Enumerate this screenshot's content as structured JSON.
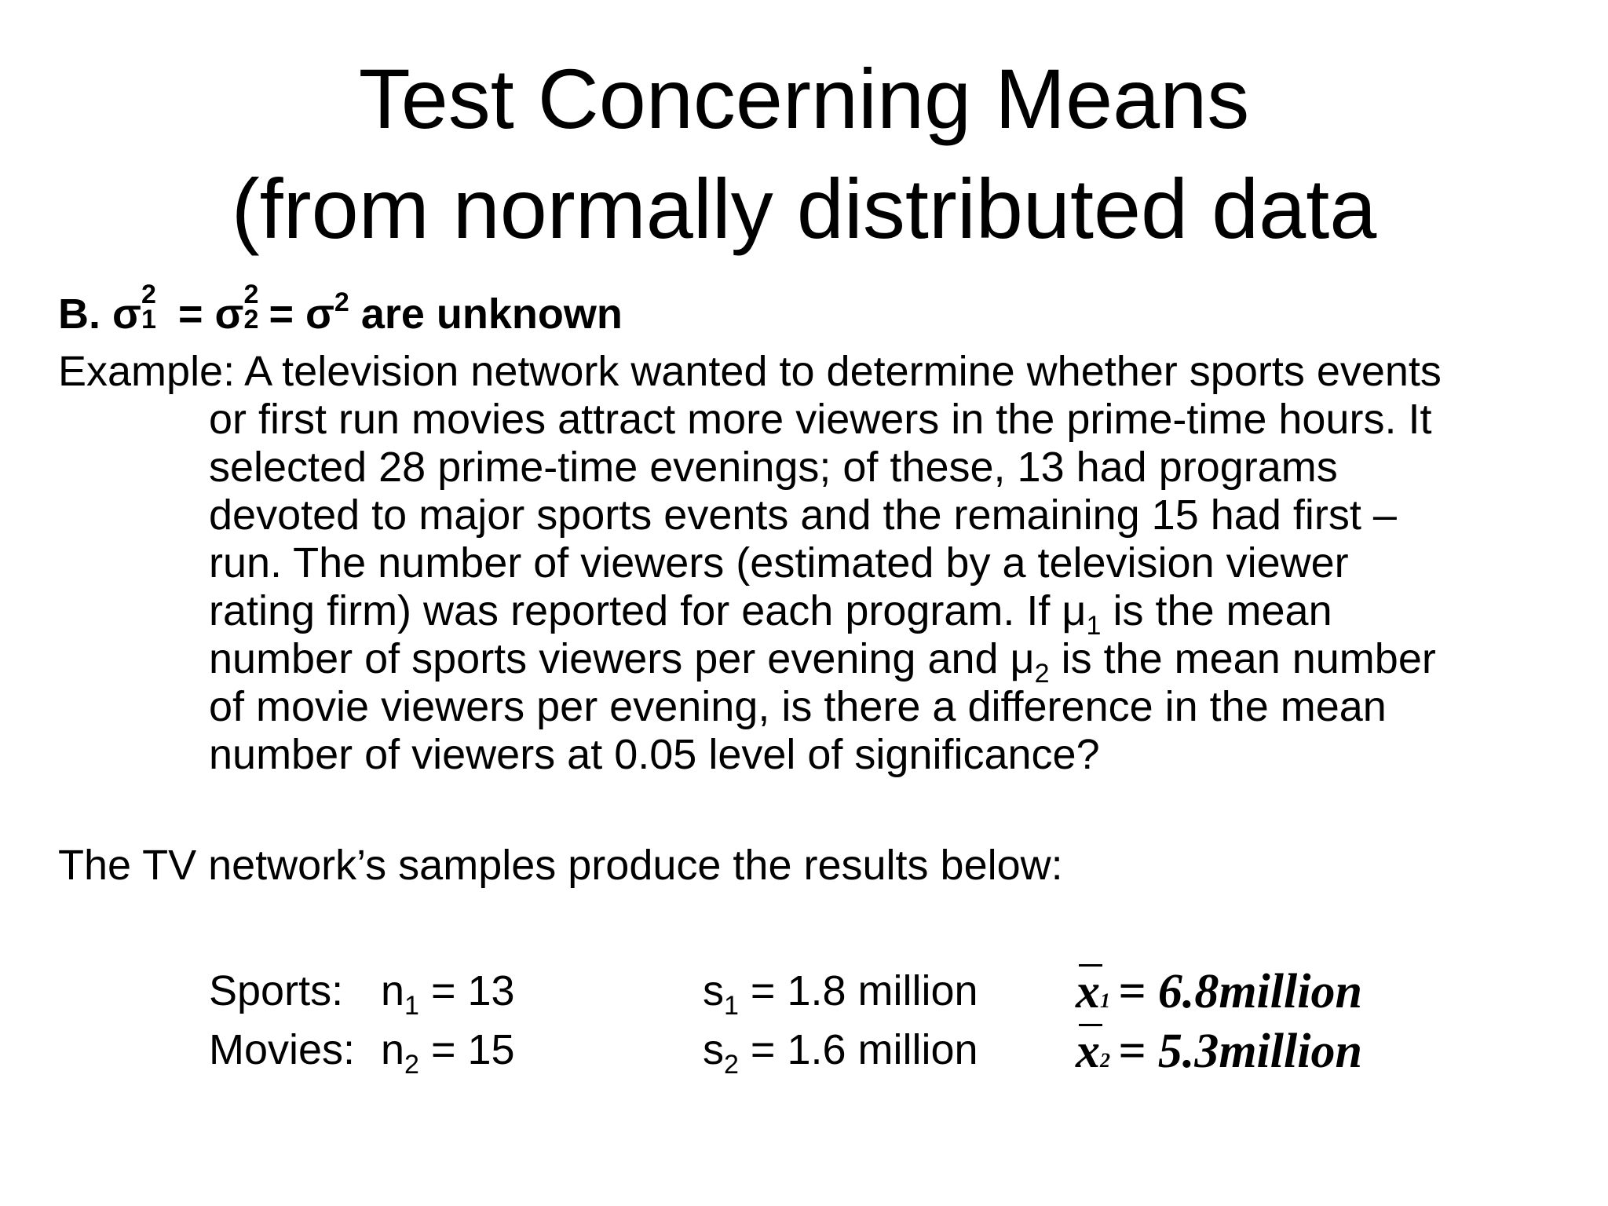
{
  "title": {
    "line1": "Test Concerning Means",
    "line2": "(from normally distributed data"
  },
  "heading": {
    "prefix": "B. σ",
    "sigma1_sup": "2",
    "sigma1_sub": "1",
    "eq1": " = σ",
    "sigma2_sup": "2",
    "sigma2_sub": "2",
    "eq2": "= σ",
    "sigma_sup": "2",
    "suffix": " are unknown"
  },
  "example": {
    "prefix": "Example: A television network wanted to determine whether sports events",
    "lines": [
      "or first run movies attract more viewers in the prime-time hours. It",
      "selected 28 prime-time evenings; of these, 13 had programs",
      "devoted to major sports events and the remaining 15 had first –",
      "run. The number of viewers (estimated by a television viewer"
    ],
    "line6_a": "rating firm) was reported for each program. If μ",
    "line6_sub": "1",
    "line6_b": " is the mean",
    "line7_a": "number of sports viewers per evening and μ",
    "line7_sub": "2",
    "line7_b": " is the mean number",
    "line8": "of movie viewers per evening, is there a difference in the mean",
    "line9": "number of viewers at 0.05 level of significance?"
  },
  "results_intro": "The TV network’s samples produce the results below:",
  "results": [
    {
      "label": "Sports:",
      "n_prefix": "n",
      "n_sub": "1",
      "n_value": " = 13",
      "s_prefix": "s",
      "s_sub": "1",
      "s_value": " = 1.8 million",
      "xbar": "x",
      "xbar_sub": "1",
      "mean_value": "= 6.8million"
    },
    {
      "label": "Movies:",
      "n_prefix": "n",
      "n_sub": "2",
      "n_value": " = 15",
      "s_prefix": "s",
      "s_sub": "2",
      "s_value": " = 1.6 million",
      "xbar": "x",
      "xbar_sub": "2",
      "mean_value": "= 5.3million"
    }
  ]
}
